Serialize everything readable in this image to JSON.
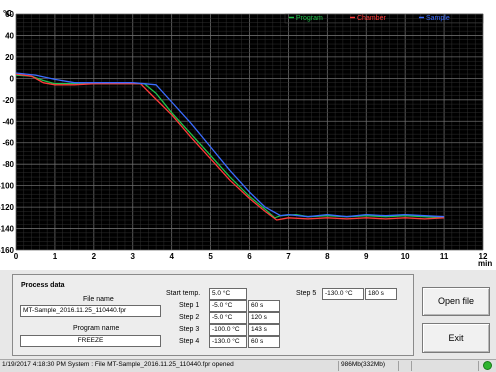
{
  "chart_data": {
    "type": "line",
    "ylabel": "°C",
    "xlabel": "min",
    "xlim": [
      0,
      12
    ],
    "ylim": [
      -160,
      60
    ],
    "xticks": [
      0,
      1,
      2,
      3,
      4,
      5,
      6,
      7,
      8,
      9,
      10,
      11,
      12
    ],
    "yticks": [
      60,
      40,
      20,
      0,
      -20,
      -40,
      -60,
      -80,
      -100,
      -120,
      -140,
      -160
    ],
    "grid": true,
    "legend_position": "top-right",
    "series": [
      {
        "name": "Program",
        "color": "#1ec24a",
        "points": [
          [
            0,
            3
          ],
          [
            0.4,
            2
          ],
          [
            0.7,
            -2
          ],
          [
            1.0,
            -5
          ],
          [
            1.5,
            -5
          ],
          [
            2.0,
            -5
          ],
          [
            2.5,
            -5
          ],
          [
            3.0,
            -5
          ],
          [
            3.3,
            -5
          ],
          [
            3.6,
            -14
          ],
          [
            4.0,
            -32
          ],
          [
            4.5,
            -52
          ],
          [
            5.0,
            -72
          ],
          [
            5.5,
            -92
          ],
          [
            6.0,
            -110
          ],
          [
            6.4,
            -122
          ],
          [
            6.65,
            -130
          ],
          [
            6.8,
            -128
          ],
          [
            7.2,
            -127
          ],
          [
            7.5,
            -129
          ],
          [
            8.0,
            -128
          ],
          [
            8.5,
            -129
          ],
          [
            9.0,
            -128
          ],
          [
            9.5,
            -129
          ],
          [
            10.0,
            -128
          ],
          [
            10.5,
            -129
          ],
          [
            11.0,
            -130
          ]
        ]
      },
      {
        "name": "Chamber",
        "color": "#ff3a3a",
        "points": [
          [
            0,
            4
          ],
          [
            0.4,
            2
          ],
          [
            0.7,
            -4
          ],
          [
            1.0,
            -6
          ],
          [
            1.5,
            -6
          ],
          [
            2.0,
            -5
          ],
          [
            2.5,
            -5
          ],
          [
            3.0,
            -5
          ],
          [
            3.2,
            -5
          ],
          [
            3.5,
            -16
          ],
          [
            4.0,
            -34
          ],
          [
            4.5,
            -55
          ],
          [
            5.0,
            -75
          ],
          [
            5.5,
            -95
          ],
          [
            6.0,
            -112
          ],
          [
            6.4,
            -124
          ],
          [
            6.7,
            -132
          ],
          [
            7.0,
            -130
          ],
          [
            7.5,
            -131
          ],
          [
            8.0,
            -130
          ],
          [
            8.5,
            -131
          ],
          [
            9.0,
            -130
          ],
          [
            9.5,
            -131
          ],
          [
            10.0,
            -130
          ],
          [
            10.5,
            -131
          ],
          [
            11.0,
            -130
          ]
        ]
      },
      {
        "name": "Sample",
        "color": "#3a6cff",
        "points": [
          [
            0,
            5
          ],
          [
            0.5,
            3
          ],
          [
            1.0,
            -1
          ],
          [
            1.5,
            -4
          ],
          [
            2.0,
            -4
          ],
          [
            2.5,
            -4
          ],
          [
            3.0,
            -4
          ],
          [
            3.3,
            -5
          ],
          [
            3.6,
            -6
          ],
          [
            4.0,
            -22
          ],
          [
            4.5,
            -42
          ],
          [
            5.0,
            -64
          ],
          [
            5.5,
            -86
          ],
          [
            6.0,
            -106
          ],
          [
            6.4,
            -120
          ],
          [
            6.8,
            -128
          ],
          [
            7.0,
            -127
          ],
          [
            7.5,
            -129
          ],
          [
            8.0,
            -127
          ],
          [
            8.5,
            -129
          ],
          [
            9.0,
            -127
          ],
          [
            9.5,
            -128
          ],
          [
            10.0,
            -127
          ],
          [
            10.5,
            -128
          ],
          [
            11.0,
            -129
          ]
        ]
      }
    ]
  },
  "process_data": {
    "title": "Process data",
    "file_name_label": "File name",
    "file_name": "MT-Sample_2016.11.25_110440.fpr",
    "program_name_label": "Program name",
    "program_name": "FREEZE",
    "start_temp_label": "Start temp.",
    "start_temp": "5.0 °C",
    "steps": [
      {
        "label": "Step 1",
        "temp": "-5.0 °C",
        "time": "60 s"
      },
      {
        "label": "Step 2",
        "temp": "-5.0 °C",
        "time": "120 s"
      },
      {
        "label": "Step 3",
        "temp": "-100.0 °C",
        "time": "143 s"
      },
      {
        "label": "Step 4",
        "temp": "-130.0 °C",
        "time": "60 s"
      },
      {
        "label": "Step 5",
        "temp": "-130.0 °C",
        "time": "180 s"
      }
    ]
  },
  "buttons": {
    "open_file": "Open file",
    "exit": "Exit"
  },
  "status_bar": {
    "message": "1/19/2017 4:18:30 PM System : File MT-Sample_2016.11.25_110440.fpr opened",
    "memory": "986Mb(332Mb)"
  },
  "colors": {
    "plot_background": "#000000",
    "grid": "#555555",
    "status_ok": "#2fb52f"
  }
}
